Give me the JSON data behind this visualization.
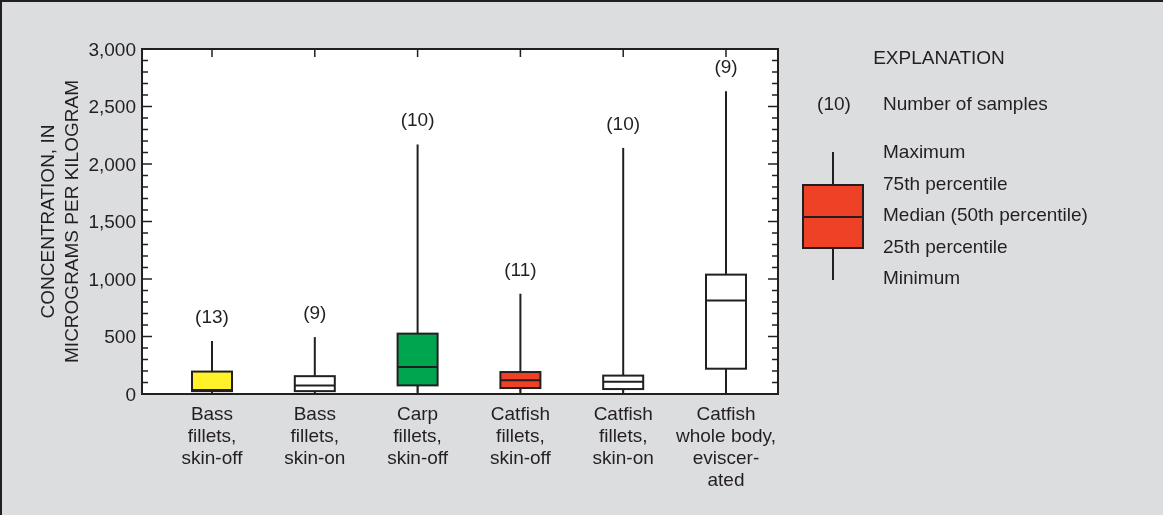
{
  "chart_data": {
    "type": "box",
    "ylabel": "CONCENTRATION, IN\nMICROGRAMS PER KILOGRAM",
    "legend_title": "EXPLANATION",
    "categories": [
      "Bass\nfillets,\nskin-off",
      "Bass\nfillets,\nskin-on",
      "Carp\nfillets,\nskin-off",
      "Catfish\nfillets,\nskin-off",
      "Catfish\nfillets,\nskin-on",
      "Catfish\nwhole body,\neviscer-\nated"
    ],
    "colors": [
      "#fff22a",
      "#ffffff",
      "#00a550",
      "#ee4125",
      "#ffffff",
      "#ffffff"
    ],
    "boxes": [
      {
        "low": 10,
        "q1": 25,
        "median": 35,
        "q3": 195,
        "high": 460
      },
      {
        "low": 10,
        "q1": 25,
        "median": 75,
        "q3": 155,
        "high": 495
      },
      {
        "low": 10,
        "q1": 75,
        "median": 235,
        "q3": 525,
        "high": 2170
      },
      {
        "low": 10,
        "q1": 52,
        "median": 119,
        "q3": 191,
        "high": 872
      },
      {
        "low": 10,
        "q1": 43,
        "median": 107,
        "q3": 160,
        "high": 2140
      },
      {
        "low": 5,
        "q1": 220,
        "median": 814,
        "q3": 1038,
        "high": 2632
      }
    ],
    "ylim": [
      0,
      3000
    ],
    "yticks": [
      {
        "value": 0,
        "label": "0"
      },
      {
        "value": 100,
        "label": null
      },
      {
        "value": 200,
        "label": null
      },
      {
        "value": 300,
        "label": null
      },
      {
        "value": 400,
        "label": null
      },
      {
        "value": 500,
        "label": "500"
      },
      {
        "value": 600,
        "label": null
      },
      {
        "value": 700,
        "label": null
      },
      {
        "value": 800,
        "label": null
      },
      {
        "value": 900,
        "label": null
      },
      {
        "value": 1000,
        "label": "1,000"
      },
      {
        "value": 1100,
        "label": null
      },
      {
        "value": 1200,
        "label": null
      },
      {
        "value": 1300,
        "label": null
      },
      {
        "value": 1400,
        "label": null
      },
      {
        "value": 1500,
        "label": "1,500"
      },
      {
        "value": 1600,
        "label": null
      },
      {
        "value": 1700,
        "label": null
      },
      {
        "value": 1800,
        "label": null
      },
      {
        "value": 1900,
        "label": null
      },
      {
        "value": 2000,
        "label": "2,000"
      },
      {
        "value": 2100,
        "label": null
      },
      {
        "value": 2200,
        "label": null
      },
      {
        "value": 2300,
        "label": null
      },
      {
        "value": 2400,
        "label": null
      },
      {
        "value": 2500,
        "label": "2,500"
      },
      {
        "value": 2600,
        "label": null
      },
      {
        "value": 2700,
        "label": null
      },
      {
        "value": 2800,
        "label": null
      },
      {
        "value": 2900,
        "label": null
      },
      {
        "value": 3000,
        "label": "3,000"
      }
    ],
    "grid": false,
    "annotations": [
      "(13)",
      "(9)",
      "(10)",
      "(11)",
      "(10)",
      "(9)",
      "(10)",
      "Number of samples",
      "Maximum",
      "75th percentile",
      "Median (50th percentile)",
      "25th percentile",
      "Minimum"
    ]
  }
}
